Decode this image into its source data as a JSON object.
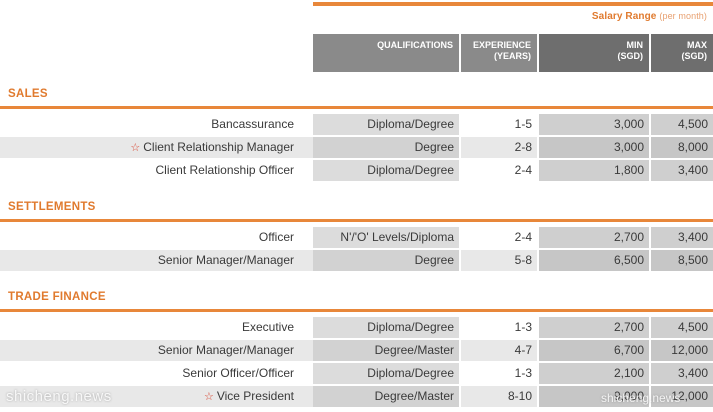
{
  "colors": {
    "accent": "#e07a2e",
    "header_gray": "#8a8a8a",
    "header_dark": "#6e6e6e",
    "star": "#d8432e"
  },
  "header": {
    "salary_range": "Salary Range",
    "salary_range_suffix": "(per month)",
    "qualifications": "QUALIFICATIONS",
    "experience_line1": "EXPERIENCE",
    "experience_line2": "(YEARS)",
    "min_line1": "MIN",
    "min_line2": "(SGD)",
    "max_line1": "MAX",
    "max_line2": "(SGD)"
  },
  "sections": [
    {
      "title": "SALES",
      "rows": [
        {
          "title": "Bancassurance",
          "star": false,
          "qualification": "Diploma/Degree",
          "experience": "1-5",
          "min": "3,000",
          "max": "4,500"
        },
        {
          "title": "Client Relationship Manager",
          "star": true,
          "qualification": "Degree",
          "experience": "2-8",
          "min": "3,000",
          "max": "8,000"
        },
        {
          "title": "Client Relationship Officer",
          "star": false,
          "qualification": "Diploma/Degree",
          "experience": "2-4",
          "min": "1,800",
          "max": "3,400"
        }
      ]
    },
    {
      "title": "SETTLEMENTS",
      "rows": [
        {
          "title": "Officer",
          "star": false,
          "qualification": "N'/'O' Levels/Diploma",
          "experience": "2-4",
          "min": "2,700",
          "max": "3,400"
        },
        {
          "title": "Senior Manager/Manager",
          "star": false,
          "qualification": "Degree",
          "experience": "5-8",
          "min": "6,500",
          "max": "8,500"
        }
      ]
    },
    {
      "title": "TRADE FINANCE",
      "rows": [
        {
          "title": "Executive",
          "star": false,
          "qualification": "Diploma/Degree",
          "experience": "1-3",
          "min": "2,700",
          "max": "4,500"
        },
        {
          "title": "Senior Manager/Manager",
          "star": false,
          "qualification": "Degree/Master",
          "experience": "4-7",
          "min": "6,700",
          "max": "12,000"
        },
        {
          "title": "Senior Officer/Officer",
          "star": false,
          "qualification": "Diploma/Degree",
          "experience": "1-3",
          "min": "2,100",
          "max": "3,400"
        },
        {
          "title": "Vice President",
          "star": true,
          "qualification": "Degree/Master",
          "experience": "8-10",
          "min": "9,000",
          "max": "12,000"
        }
      ]
    }
  ],
  "star_icon": "star-icon",
  "watermark_left": "shicheng.news",
  "watermark_right": "shicheng.news"
}
